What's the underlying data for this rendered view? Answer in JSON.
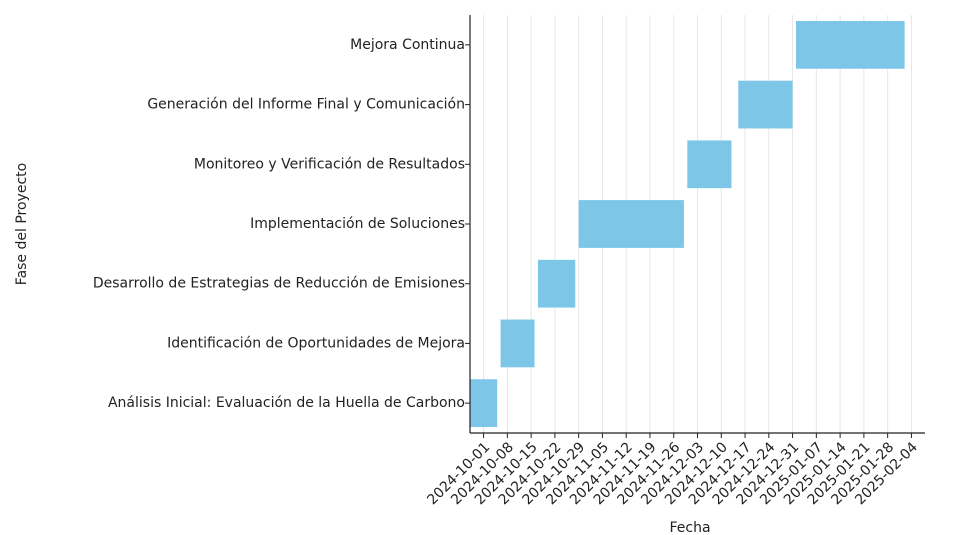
{
  "chart_data": {
    "type": "gantt",
    "xlabel": "Fecha",
    "ylabel": "Fase del Proyecto",
    "color": "#7ec6e8",
    "grid": true,
    "categories": [
      "Análisis Inicial: Evaluación de la Huella de Carbono",
      "Identificación de Oportunidades de Mejora",
      "Desarrollo de Estrategias de Reducción de Emisiones",
      "Implementación de Soluciones",
      "Monitoreo y Verificación de Resultados",
      "Generación del Informe Final y Comunicación",
      "Mejora Continua"
    ],
    "starts": [
      "2024-09-27",
      "2024-10-06",
      "2024-10-17",
      "2024-10-29",
      "2024-11-30",
      "2024-12-15",
      "2025-01-01"
    ],
    "ends": [
      "2024-10-05",
      "2024-10-16",
      "2024-10-28",
      "2024-11-29",
      "2024-12-13",
      "2024-12-31",
      "2025-02-02"
    ],
    "xlim": [
      "2024-09-27",
      "2025-02-08"
    ],
    "xticks": [
      "2024-10-01",
      "2024-10-08",
      "2024-10-15",
      "2024-10-22",
      "2024-10-29",
      "2024-11-05",
      "2024-11-12",
      "2024-11-19",
      "2024-11-26",
      "2024-12-03",
      "2024-12-10",
      "2024-12-17",
      "2024-12-24",
      "2024-12-31",
      "2025-01-07",
      "2025-01-14",
      "2025-01-21",
      "2025-01-28",
      "2025-02-04"
    ]
  }
}
